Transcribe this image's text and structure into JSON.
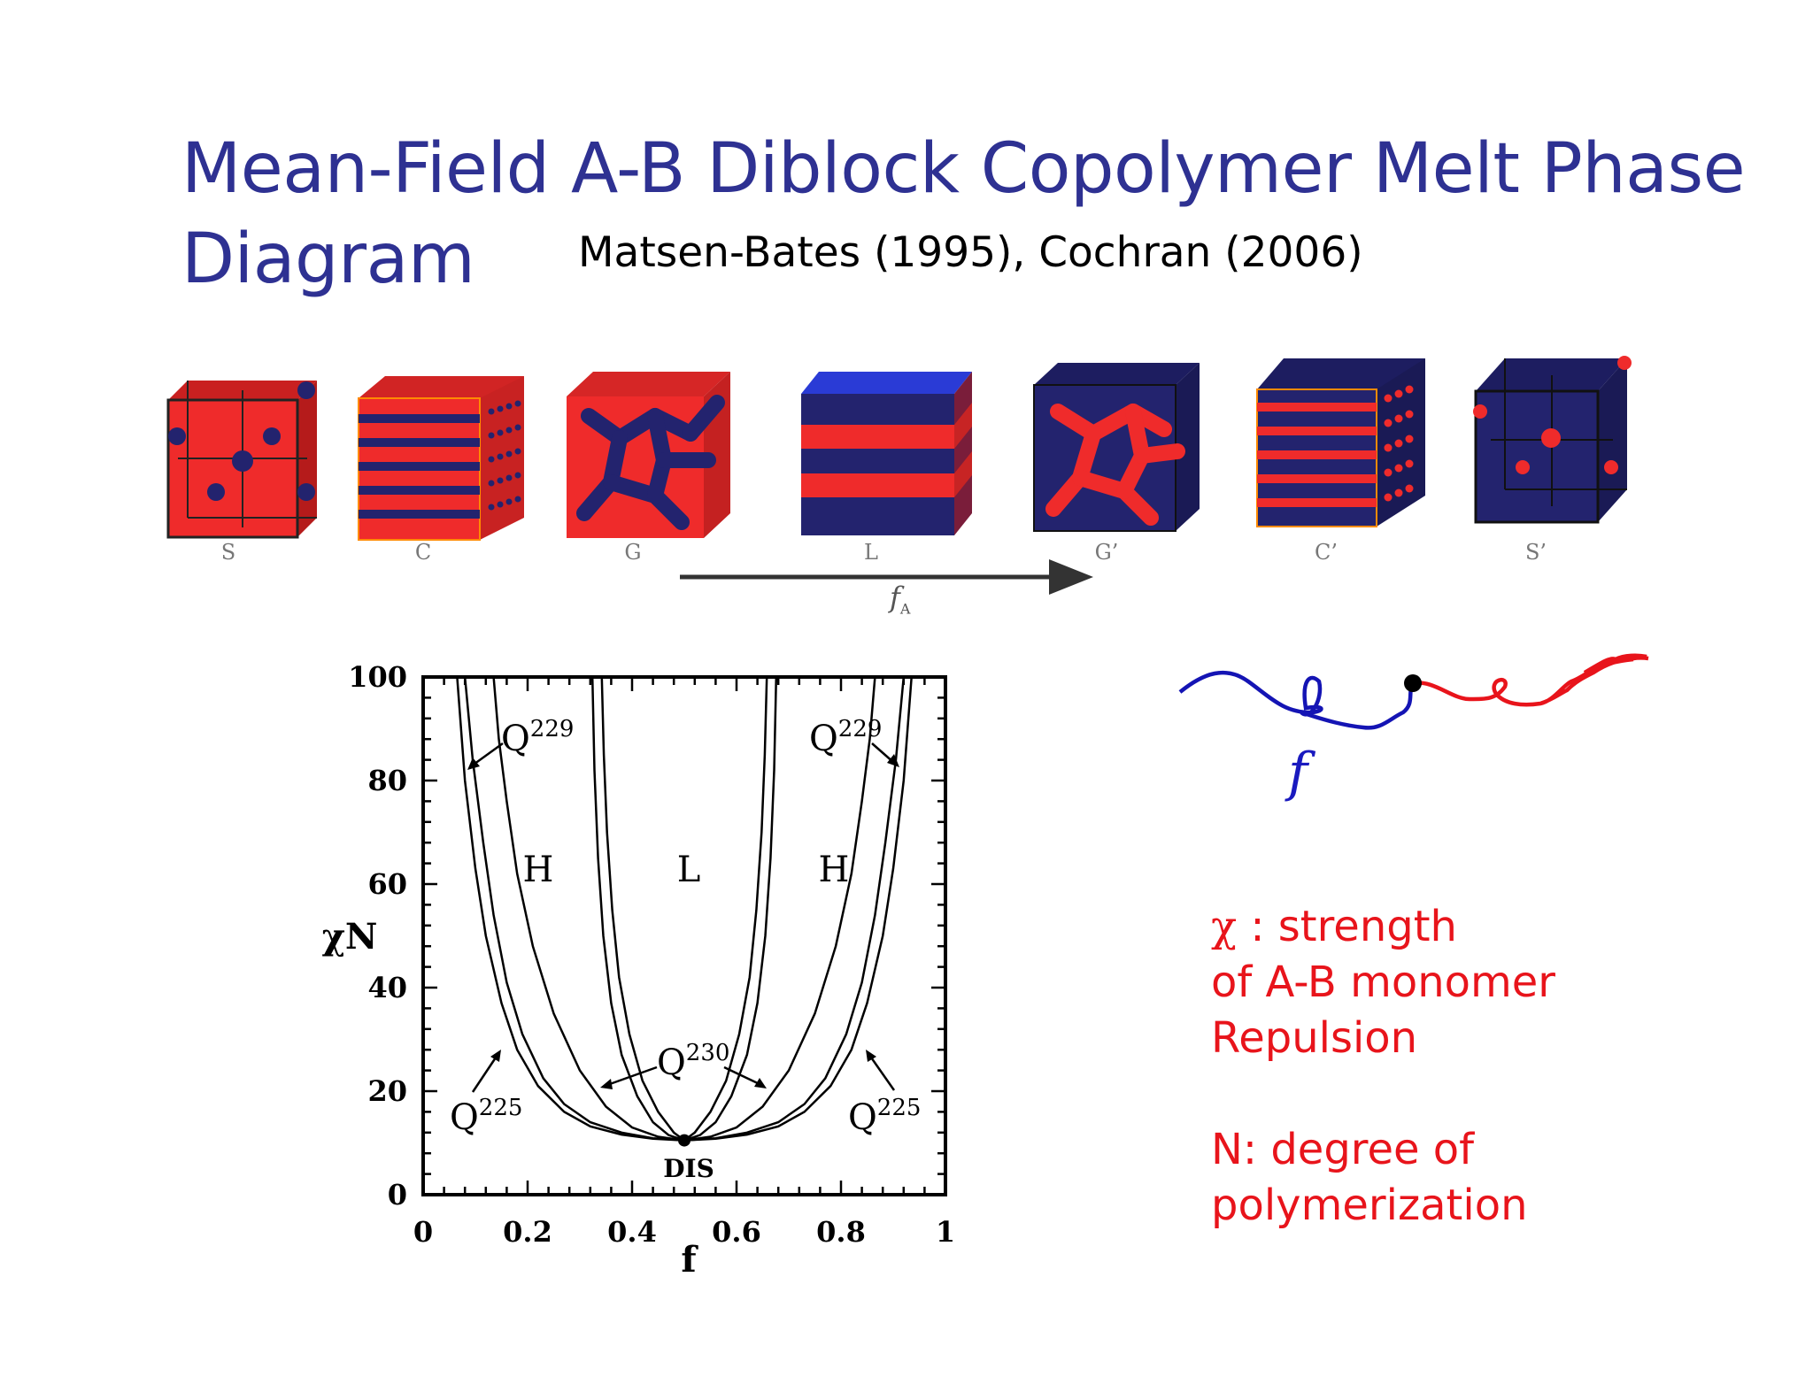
{
  "title_line1": "Mean-Field A-B Diblock Copolymer Melt Phase",
  "title_line2": "Diagram",
  "citation": "Matsen-Bates (1995), Cochran (2006)",
  "cubes": [
    {
      "label": "S",
      "matrix_color": "#ef2b2b",
      "minor_color": "#23236e"
    },
    {
      "label": "C",
      "matrix_color": "#ef2b2b",
      "minor_color": "#23236e"
    },
    {
      "label": "G",
      "matrix_color": "#ef2b2b",
      "minor_color": "#23236e"
    },
    {
      "label": "L",
      "matrix_color": "#ef2b2b",
      "minor_color": "#23236e"
    },
    {
      "label": "G’",
      "matrix_color": "#23236e",
      "minor_color": "#ef2b2b"
    },
    {
      "label": "C’",
      "matrix_color": "#23236e",
      "minor_color": "#ef2b2b"
    },
    {
      "label": "S’",
      "matrix_color": "#23236e",
      "minor_color": "#ef2b2b"
    }
  ],
  "arrow_label": "f",
  "arrow_label_sub": "A",
  "phase_diagram": {
    "xlabel": "f",
    "ylabel": "χN",
    "x_ticks": [
      "0",
      "0.2",
      "0.4",
      "0.6",
      "0.8",
      "1"
    ],
    "y_ticks": [
      "0",
      "20",
      "40",
      "60",
      "80",
      "100"
    ],
    "xlim": [
      0,
      1
    ],
    "ylim": [
      0,
      100
    ],
    "region_labels": [
      "H",
      "L",
      "H"
    ],
    "annotations": [
      {
        "base": "Q",
        "sup": "229"
      },
      {
        "base": "Q",
        "sup": "229"
      },
      {
        "base": "Q",
        "sup": "230"
      },
      {
        "base": "Q",
        "sup": "225"
      },
      {
        "base": "Q",
        "sup": "225"
      }
    ],
    "critical_point_label": "DIS",
    "critical_point": {
      "f": 0.5,
      "chiN": 10.5
    }
  },
  "chain": {
    "label": "f",
    "a_color": "#1414b4",
    "b_color": "#e8141b"
  },
  "legend": {
    "chi_symbol": "χ",
    "line1": " : strength",
    "line2": "of A-B monomer",
    "line3": "Repulsion",
    "line4": "N: degree of",
    "line5": "polymerization"
  }
}
